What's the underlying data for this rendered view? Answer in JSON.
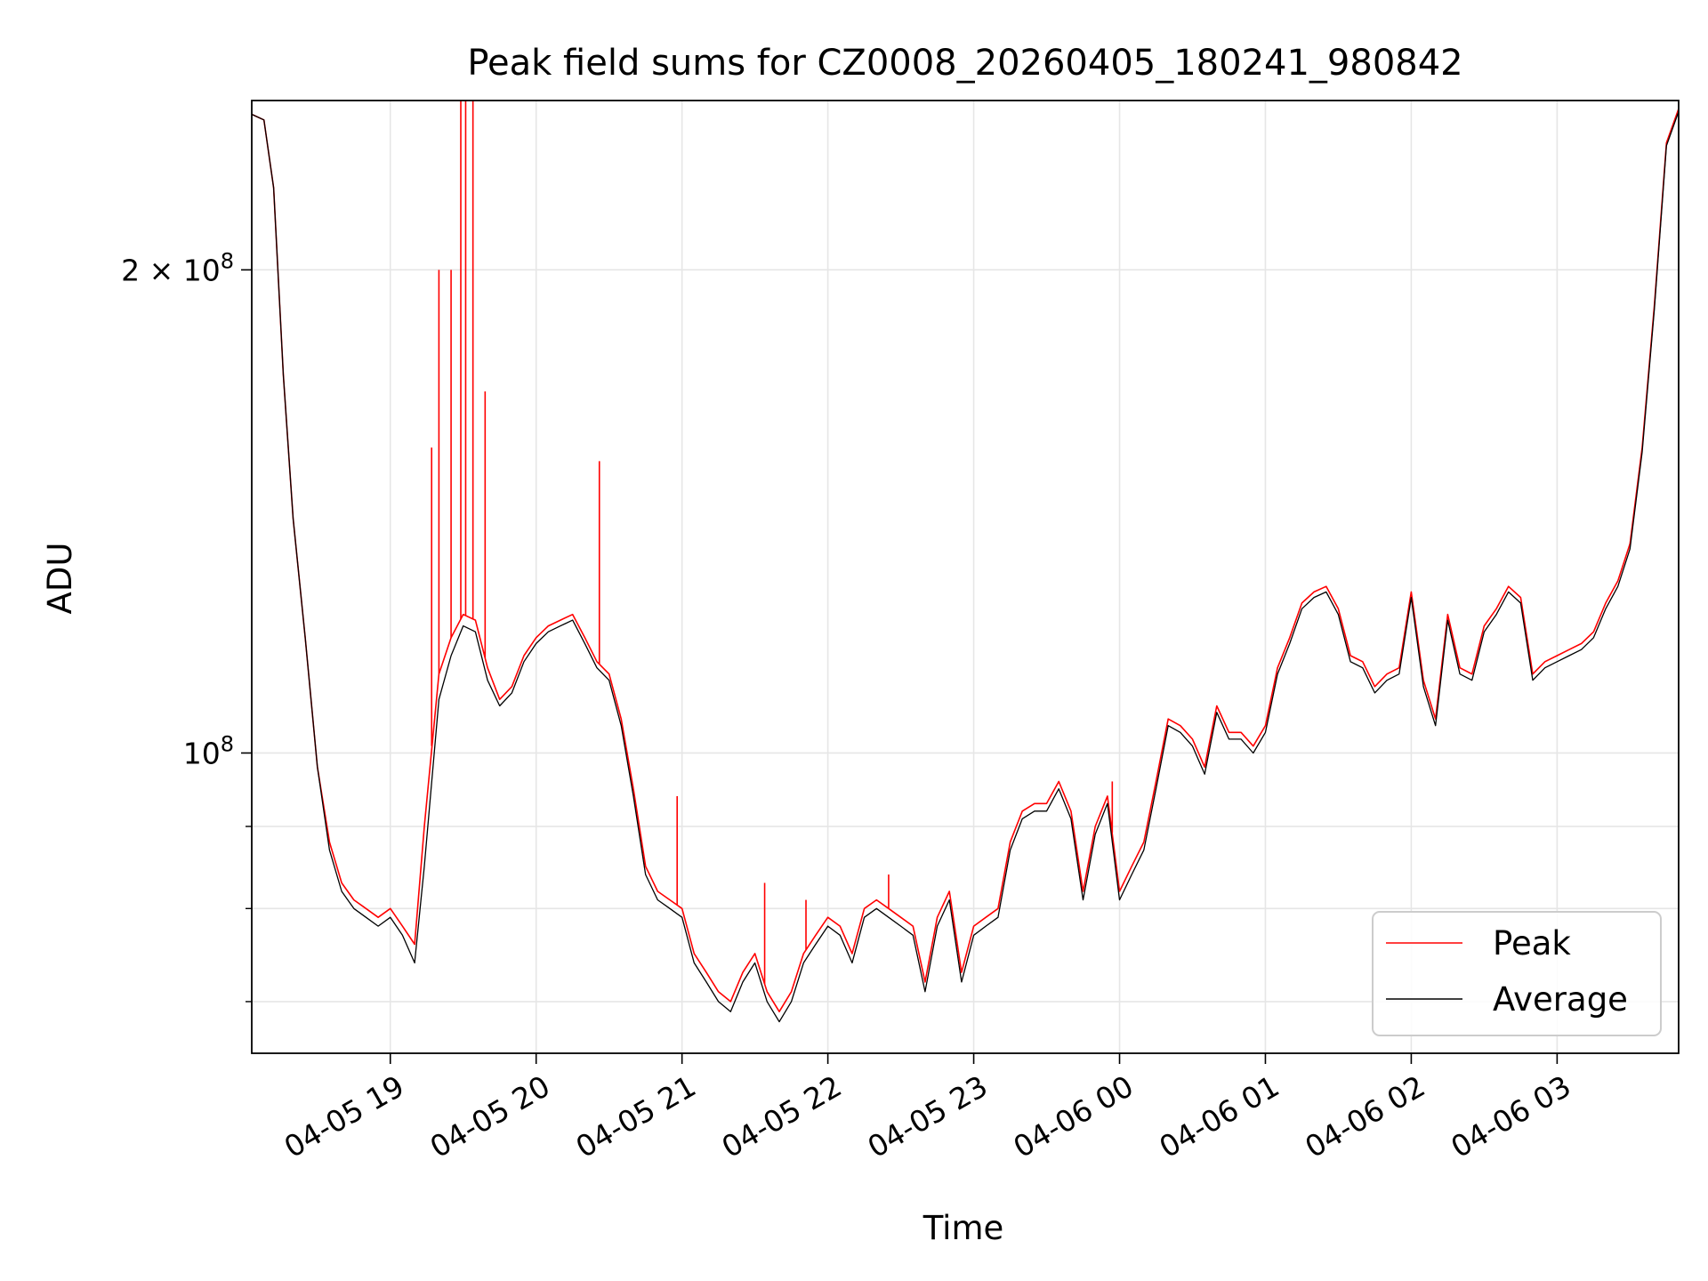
{
  "chart_data": {
    "type": "line",
    "title": "Peak field sums for CZ0008_20260405_180241_980842",
    "xlabel": "Time",
    "ylabel": "ADU",
    "y_scale": "log",
    "ylim": [
      65000000,
      255000000
    ],
    "xlim": [
      "2026-04-05 18:03",
      "2026-04-06 03:50"
    ],
    "grid": true,
    "legend_position": "lower right",
    "x_ticks": [
      {
        "t": "2026-04-05 19:00",
        "label": "04-05 19"
      },
      {
        "t": "2026-04-05 20:00",
        "label": "04-05 20"
      },
      {
        "t": "2026-04-05 21:00",
        "label": "04-05 21"
      },
      {
        "t": "2026-04-05 22:00",
        "label": "04-05 22"
      },
      {
        "t": "2026-04-05 23:00",
        "label": "04-05 23"
      },
      {
        "t": "2026-04-06 00:00",
        "label": "04-06 00"
      },
      {
        "t": "2026-04-06 01:00",
        "label": "04-06 01"
      },
      {
        "t": "2026-04-06 02:00",
        "label": "04-06 02"
      },
      {
        "t": "2026-04-06 03:00",
        "label": "04-06 03"
      }
    ],
    "y_major_ticks": [
      {
        "value": 100000000,
        "base": "10",
        "exp": "8"
      },
      {
        "value": 200000000,
        "base": "2 × 10",
        "exp": "8"
      }
    ],
    "y_minor_ticks": [
      70000000,
      80000000,
      90000000
    ],
    "series": [
      {
        "name": "Peak",
        "color": "#ff0000",
        "x": [
          "2026-04-05 18:03",
          "2026-04-05 18:08",
          "2026-04-05 18:12",
          "2026-04-05 18:16",
          "2026-04-05 18:20",
          "2026-04-05 18:25",
          "2026-04-05 18:30",
          "2026-04-05 18:35",
          "2026-04-05 18:40",
          "2026-04-05 18:45",
          "2026-04-05 18:50",
          "2026-04-05 18:55",
          "2026-04-05 19:00",
          "2026-04-05 19:05",
          "2026-04-05 19:10",
          "2026-04-05 19:14",
          "2026-04-05 19:20",
          "2026-04-05 19:25",
          "2026-04-05 19:30",
          "2026-04-05 19:35",
          "2026-04-05 19:40",
          "2026-04-05 19:45",
          "2026-04-05 19:50",
          "2026-04-05 19:55",
          "2026-04-05 20:00",
          "2026-04-05 20:05",
          "2026-04-05 20:10",
          "2026-04-05 20:15",
          "2026-04-05 20:20",
          "2026-04-05 20:25",
          "2026-04-05 20:30",
          "2026-04-05 20:35",
          "2026-04-05 20:40",
          "2026-04-05 20:45",
          "2026-04-05 20:50",
          "2026-04-05 20:55",
          "2026-04-05 21:00",
          "2026-04-05 21:05",
          "2026-04-05 21:10",
          "2026-04-05 21:15",
          "2026-04-05 21:20",
          "2026-04-05 21:25",
          "2026-04-05 21:30",
          "2026-04-05 21:35",
          "2026-04-05 21:40",
          "2026-04-05 21:45",
          "2026-04-05 21:50",
          "2026-04-05 21:55",
          "2026-04-05 22:00",
          "2026-04-05 22:05",
          "2026-04-05 22:10",
          "2026-04-05 22:15",
          "2026-04-05 22:20",
          "2026-04-05 22:25",
          "2026-04-05 22:30",
          "2026-04-05 22:35",
          "2026-04-05 22:40",
          "2026-04-05 22:45",
          "2026-04-05 22:50",
          "2026-04-05 22:55",
          "2026-04-05 23:00",
          "2026-04-05 23:05",
          "2026-04-05 23:10",
          "2026-04-05 23:15",
          "2026-04-05 23:20",
          "2026-04-05 23:25",
          "2026-04-05 23:30",
          "2026-04-05 23:35",
          "2026-04-05 23:40",
          "2026-04-05 23:45",
          "2026-04-05 23:50",
          "2026-04-05 23:55",
          "2026-04-06 00:00",
          "2026-04-06 00:05",
          "2026-04-06 00:10",
          "2026-04-06 00:15",
          "2026-04-06 00:20",
          "2026-04-06 00:25",
          "2026-04-06 00:30",
          "2026-04-06 00:35",
          "2026-04-06 00:40",
          "2026-04-06 00:45",
          "2026-04-06 00:50",
          "2026-04-06 00:55",
          "2026-04-06 01:00",
          "2026-04-06 01:05",
          "2026-04-06 01:10",
          "2026-04-06 01:15",
          "2026-04-06 01:20",
          "2026-04-06 01:25",
          "2026-04-06 01:30",
          "2026-04-06 01:35",
          "2026-04-06 01:40",
          "2026-04-06 01:45",
          "2026-04-06 01:50",
          "2026-04-06 01:55",
          "2026-04-06 02:00",
          "2026-04-06 02:05",
          "2026-04-06 02:10",
          "2026-04-06 02:15",
          "2026-04-06 02:20",
          "2026-04-06 02:25",
          "2026-04-06 02:30",
          "2026-04-06 02:35",
          "2026-04-06 02:40",
          "2026-04-06 02:45",
          "2026-04-06 02:50",
          "2026-04-06 02:55",
          "2026-04-06 03:00",
          "2026-04-06 03:05",
          "2026-04-06 03:10",
          "2026-04-06 03:15",
          "2026-04-06 03:20",
          "2026-04-06 03:25",
          "2026-04-06 03:30",
          "2026-04-06 03:35",
          "2026-04-06 03:40",
          "2026-04-06 03:45",
          "2026-04-06 03:50"
        ],
        "y": [
          250000000,
          248000000,
          225000000,
          172000000,
          140000000,
          118000000,
          98000000,
          88000000,
          83000000,
          81000000,
          80000000,
          79000000,
          80000000,
          78000000,
          76000000,
          90000000,
          112000000,
          118000000,
          122000000,
          121000000,
          113000000,
          108000000,
          110000000,
          115000000,
          118000000,
          120000000,
          121000000,
          122000000,
          118000000,
          114000000,
          112000000,
          105000000,
          95000000,
          85000000,
          82000000,
          81000000,
          80000000,
          75000000,
          73000000,
          71000000,
          70000000,
          73000000,
          75000000,
          71000000,
          69000000,
          71000000,
          75000000,
          77000000,
          79000000,
          78000000,
          75000000,
          80000000,
          81000000,
          80000000,
          79000000,
          78000000,
          72000000,
          79000000,
          82000000,
          73000000,
          78000000,
          79000000,
          80000000,
          88000000,
          92000000,
          93000000,
          93000000,
          96000000,
          92000000,
          82000000,
          90000000,
          94000000,
          82000000,
          85000000,
          88000000,
          96000000,
          105000000,
          104000000,
          102000000,
          98000000,
          107000000,
          103000000,
          103000000,
          101000000,
          104000000,
          113000000,
          118000000,
          124000000,
          126000000,
          127000000,
          123000000,
          115000000,
          114000000,
          110000000,
          112000000,
          113000000,
          126000000,
          111000000,
          105000000,
          122000000,
          113000000,
          112000000,
          120000000,
          123000000,
          127000000,
          125000000,
          112000000,
          114000000,
          115000000,
          116000000,
          117000000,
          119000000,
          124000000,
          128000000,
          135000000,
          155000000,
          190000000,
          240000000,
          252000000
        ],
        "spikes": [
          {
            "t": "2026-04-05 19:17",
            "y": 155000000
          },
          {
            "t": "2026-04-05 19:20",
            "y": 200000000
          },
          {
            "t": "2026-04-05 19:25",
            "y": 200000000
          },
          {
            "t": "2026-04-05 19:29",
            "y": 255000000
          },
          {
            "t": "2026-04-05 19:31",
            "y": 255000000
          },
          {
            "t": "2026-04-05 19:34",
            "y": 255000000
          },
          {
            "t": "2026-04-05 19:39",
            "y": 168000000
          },
          {
            "t": "2026-04-05 20:26",
            "y": 152000000
          },
          {
            "t": "2026-04-05 20:58",
            "y": 94000000
          },
          {
            "t": "2026-04-05 21:34",
            "y": 83000000
          },
          {
            "t": "2026-04-05 21:51",
            "y": 81000000
          },
          {
            "t": "2026-04-05 22:25",
            "y": 84000000
          },
          {
            "t": "2026-04-05 23:57",
            "y": 96000000
          }
        ]
      },
      {
        "name": "Average",
        "color": "#000000",
        "x": [
          "2026-04-05 18:03",
          "2026-04-05 18:08",
          "2026-04-05 18:12",
          "2026-04-05 18:16",
          "2026-04-05 18:20",
          "2026-04-05 18:25",
          "2026-04-05 18:30",
          "2026-04-05 18:35",
          "2026-04-05 18:40",
          "2026-04-05 18:45",
          "2026-04-05 18:50",
          "2026-04-05 18:55",
          "2026-04-05 19:00",
          "2026-04-05 19:05",
          "2026-04-05 19:10",
          "2026-04-05 19:14",
          "2026-04-05 19:20",
          "2026-04-05 19:25",
          "2026-04-05 19:30",
          "2026-04-05 19:35",
          "2026-04-05 19:40",
          "2026-04-05 19:45",
          "2026-04-05 19:50",
          "2026-04-05 19:55",
          "2026-04-05 20:00",
          "2026-04-05 20:05",
          "2026-04-05 20:10",
          "2026-04-05 20:15",
          "2026-04-05 20:20",
          "2026-04-05 20:25",
          "2026-04-05 20:30",
          "2026-04-05 20:35",
          "2026-04-05 20:40",
          "2026-04-05 20:45",
          "2026-04-05 20:50",
          "2026-04-05 20:55",
          "2026-04-05 21:00",
          "2026-04-05 21:05",
          "2026-04-05 21:10",
          "2026-04-05 21:15",
          "2026-04-05 21:20",
          "2026-04-05 21:25",
          "2026-04-05 21:30",
          "2026-04-05 21:35",
          "2026-04-05 21:40",
          "2026-04-05 21:45",
          "2026-04-05 21:50",
          "2026-04-05 21:55",
          "2026-04-05 22:00",
          "2026-04-05 22:05",
          "2026-04-05 22:10",
          "2026-04-05 22:15",
          "2026-04-05 22:20",
          "2026-04-05 22:25",
          "2026-04-05 22:30",
          "2026-04-05 22:35",
          "2026-04-05 22:40",
          "2026-04-05 22:45",
          "2026-04-05 22:50",
          "2026-04-05 22:55",
          "2026-04-05 23:00",
          "2026-04-05 23:05",
          "2026-04-05 23:10",
          "2026-04-05 23:15",
          "2026-04-05 23:20",
          "2026-04-05 23:25",
          "2026-04-05 23:30",
          "2026-04-05 23:35",
          "2026-04-05 23:40",
          "2026-04-05 23:45",
          "2026-04-05 23:50",
          "2026-04-05 23:55",
          "2026-04-06 00:00",
          "2026-04-06 00:05",
          "2026-04-06 00:10",
          "2026-04-06 00:15",
          "2026-04-06 00:20",
          "2026-04-06 00:25",
          "2026-04-06 00:30",
          "2026-04-06 00:35",
          "2026-04-06 00:40",
          "2026-04-06 00:45",
          "2026-04-06 00:50",
          "2026-04-06 00:55",
          "2026-04-06 01:00",
          "2026-04-06 01:05",
          "2026-04-06 01:10",
          "2026-04-06 01:15",
          "2026-04-06 01:20",
          "2026-04-06 01:25",
          "2026-04-06 01:30",
          "2026-04-06 01:35",
          "2026-04-06 01:40",
          "2026-04-06 01:45",
          "2026-04-06 01:50",
          "2026-04-06 01:55",
          "2026-04-06 02:00",
          "2026-04-06 02:05",
          "2026-04-06 02:10",
          "2026-04-06 02:15",
          "2026-04-06 02:20",
          "2026-04-06 02:25",
          "2026-04-06 02:30",
          "2026-04-06 02:35",
          "2026-04-06 02:40",
          "2026-04-06 02:45",
          "2026-04-06 02:50",
          "2026-04-06 02:55",
          "2026-04-06 03:00",
          "2026-04-06 03:05",
          "2026-04-06 03:10",
          "2026-04-06 03:15",
          "2026-04-06 03:20",
          "2026-04-06 03:25",
          "2026-04-06 03:30",
          "2026-04-06 03:35",
          "2026-04-06 03:40",
          "2026-04-06 03:45",
          "2026-04-06 03:50"
        ],
        "y": [
          250000000,
          248000000,
          225000000,
          172000000,
          140000000,
          118000000,
          98000000,
          87000000,
          82000000,
          80000000,
          79000000,
          78000000,
          79000000,
          77000000,
          74000000,
          85000000,
          108000000,
          115000000,
          120000000,
          119000000,
          111000000,
          107000000,
          109000000,
          114000000,
          117000000,
          119000000,
          120000000,
          121000000,
          117000000,
          113000000,
          111000000,
          104000000,
          94000000,
          84000000,
          81000000,
          80000000,
          79000000,
          74000000,
          72000000,
          70000000,
          69000000,
          72000000,
          74000000,
          70000000,
          68000000,
          70000000,
          74000000,
          76000000,
          78000000,
          77000000,
          74000000,
          79000000,
          80000000,
          79000000,
          78000000,
          77000000,
          71000000,
          78000000,
          81000000,
          72000000,
          77000000,
          78000000,
          79000000,
          87000000,
          91000000,
          92000000,
          92000000,
          95000000,
          91000000,
          81000000,
          89000000,
          93000000,
          81000000,
          84000000,
          87000000,
          95000000,
          104000000,
          103000000,
          101000000,
          97000000,
          106000000,
          102000000,
          102000000,
          100000000,
          103000000,
          112000000,
          117000000,
          123000000,
          125000000,
          126000000,
          122000000,
          114000000,
          113000000,
          109000000,
          111000000,
          112000000,
          125000000,
          110000000,
          104000000,
          121000000,
          112000000,
          111000000,
          119000000,
          122000000,
          126000000,
          124000000,
          111000000,
          113000000,
          114000000,
          115000000,
          116000000,
          118000000,
          123000000,
          127000000,
          134000000,
          154000000,
          189000000,
          239000000,
          251000000
        ]
      }
    ]
  }
}
